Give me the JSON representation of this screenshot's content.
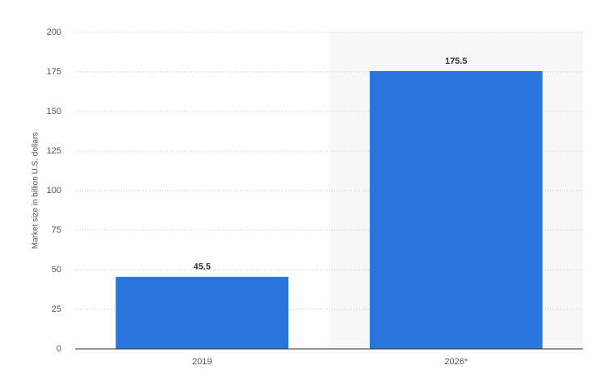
{
  "chart_data": {
    "type": "bar",
    "y_label": "Market size in billion U.S. dollars",
    "categories": [
      "2019",
      "2026*"
    ],
    "values": [
      45.5,
      175.5
    ],
    "color": "#2876dd",
    "ylim": [
      0,
      200
    ],
    "yticks": [
      0,
      25,
      50,
      75,
      100,
      125,
      150,
      175,
      200
    ],
    "grid": true
  }
}
